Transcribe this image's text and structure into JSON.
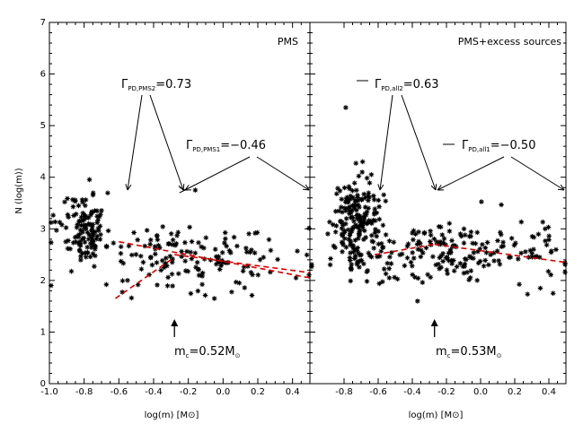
{
  "chart_data": {
    "type": "scatter",
    "ylabel": "N (log(m))",
    "ylim": [
      0,
      7
    ],
    "yticks": [
      "0",
      "1",
      "2",
      "3",
      "4",
      "5",
      "6",
      "7"
    ],
    "colors": {
      "points": "#000000",
      "fit": "#d40000",
      "axis": "#000000"
    },
    "panels": [
      {
        "title": "PMS",
        "xlabel": "log(m) [M⊙]",
        "xlim": [
          -1.0,
          0.5
        ],
        "xticks": [
          "-1.0",
          "-0.8",
          "-0.6",
          "-0.4",
          "-0.2",
          "0.0",
          "0.2",
          "0.4"
        ],
        "gamma_high": {
          "label": "Γ",
          "subscript": "PD,PMS2",
          "value": "=0.73"
        },
        "gamma_low": {
          "label": "Γ",
          "subscript": "PD,PMS1",
          "value": "=−0.46"
        },
        "mass_break": {
          "label": "m",
          "subscript": "c",
          "value": "=0.52M",
          "unit_subscript": "⊙",
          "x": -0.28
        },
        "fits": [
          {
            "name": "fit-low-mass",
            "x": [
              -0.62,
              -0.28
            ],
            "y": [
              1.65,
              2.45
            ]
          },
          {
            "name": "fit-high-mass",
            "x": [
              -0.6,
              0.5
            ],
            "y": [
              2.75,
              2.05
            ]
          },
          {
            "name": "fit-high-mass-upper",
            "x": [
              -0.28,
              0.5
            ],
            "y": [
              2.5,
              2.15
            ]
          }
        ],
        "clusters": [
          {
            "cx": -0.78,
            "cy": 3.0,
            "sx": 0.05,
            "sy": 0.35,
            "n": 110
          },
          {
            "cx": -0.2,
            "cy": 2.45,
            "sx": 0.3,
            "sy": 0.32,
            "n": 150
          },
          {
            "cx": -0.9,
            "cy": 3.25,
            "sx": 0.05,
            "sy": 0.2,
            "n": 14
          }
        ],
        "outliers": [
          {
            "x": -0.16,
            "y": 3.75
          },
          {
            "x": 0.42,
            "y": 2.05
          },
          {
            "x": -0.05,
            "y": 1.65
          }
        ],
        "seed": 11
      },
      {
        "title": "PMS+excess sources",
        "xlabel": "log(m) [M⊙]",
        "xlim": [
          -1.0,
          0.5
        ],
        "xticks": [
          "-0.8",
          "-0.6",
          "-0.4",
          "-0.2",
          "0.0",
          "0.2",
          "0.4"
        ],
        "gamma_high": {
          "label": "Γ",
          "subscript": "PD,all2",
          "value": "=0.63"
        },
        "gamma_low": {
          "label": "Γ",
          "subscript": "PD,all1",
          "value": "=−0.50"
        },
        "mass_break": {
          "label": "m",
          "subscript": "c",
          "value": "=0.53M",
          "unit_subscript": "⊙",
          "x": -0.27
        },
        "fits": [
          {
            "name": "fit-low-mass",
            "x": [
              -0.62,
              -0.27
            ],
            "y": [
              2.5,
              2.7
            ]
          },
          {
            "name": "fit-high-mass",
            "x": [
              -0.27,
              0.5
            ],
            "y": [
              2.7,
              2.35
            ]
          }
        ],
        "clusters": [
          {
            "cx": -0.74,
            "cy": 3.15,
            "sx": 0.07,
            "sy": 0.45,
            "n": 190
          },
          {
            "cx": -0.15,
            "cy": 2.5,
            "sx": 0.32,
            "sy": 0.3,
            "n": 200
          }
        ],
        "outliers": [
          {
            "x": -0.79,
            "y": 5.35
          },
          {
            "x": -0.64,
            "y": 4.05
          },
          {
            "x": 0.35,
            "y": 1.85
          }
        ],
        "seed": 29
      }
    ]
  }
}
